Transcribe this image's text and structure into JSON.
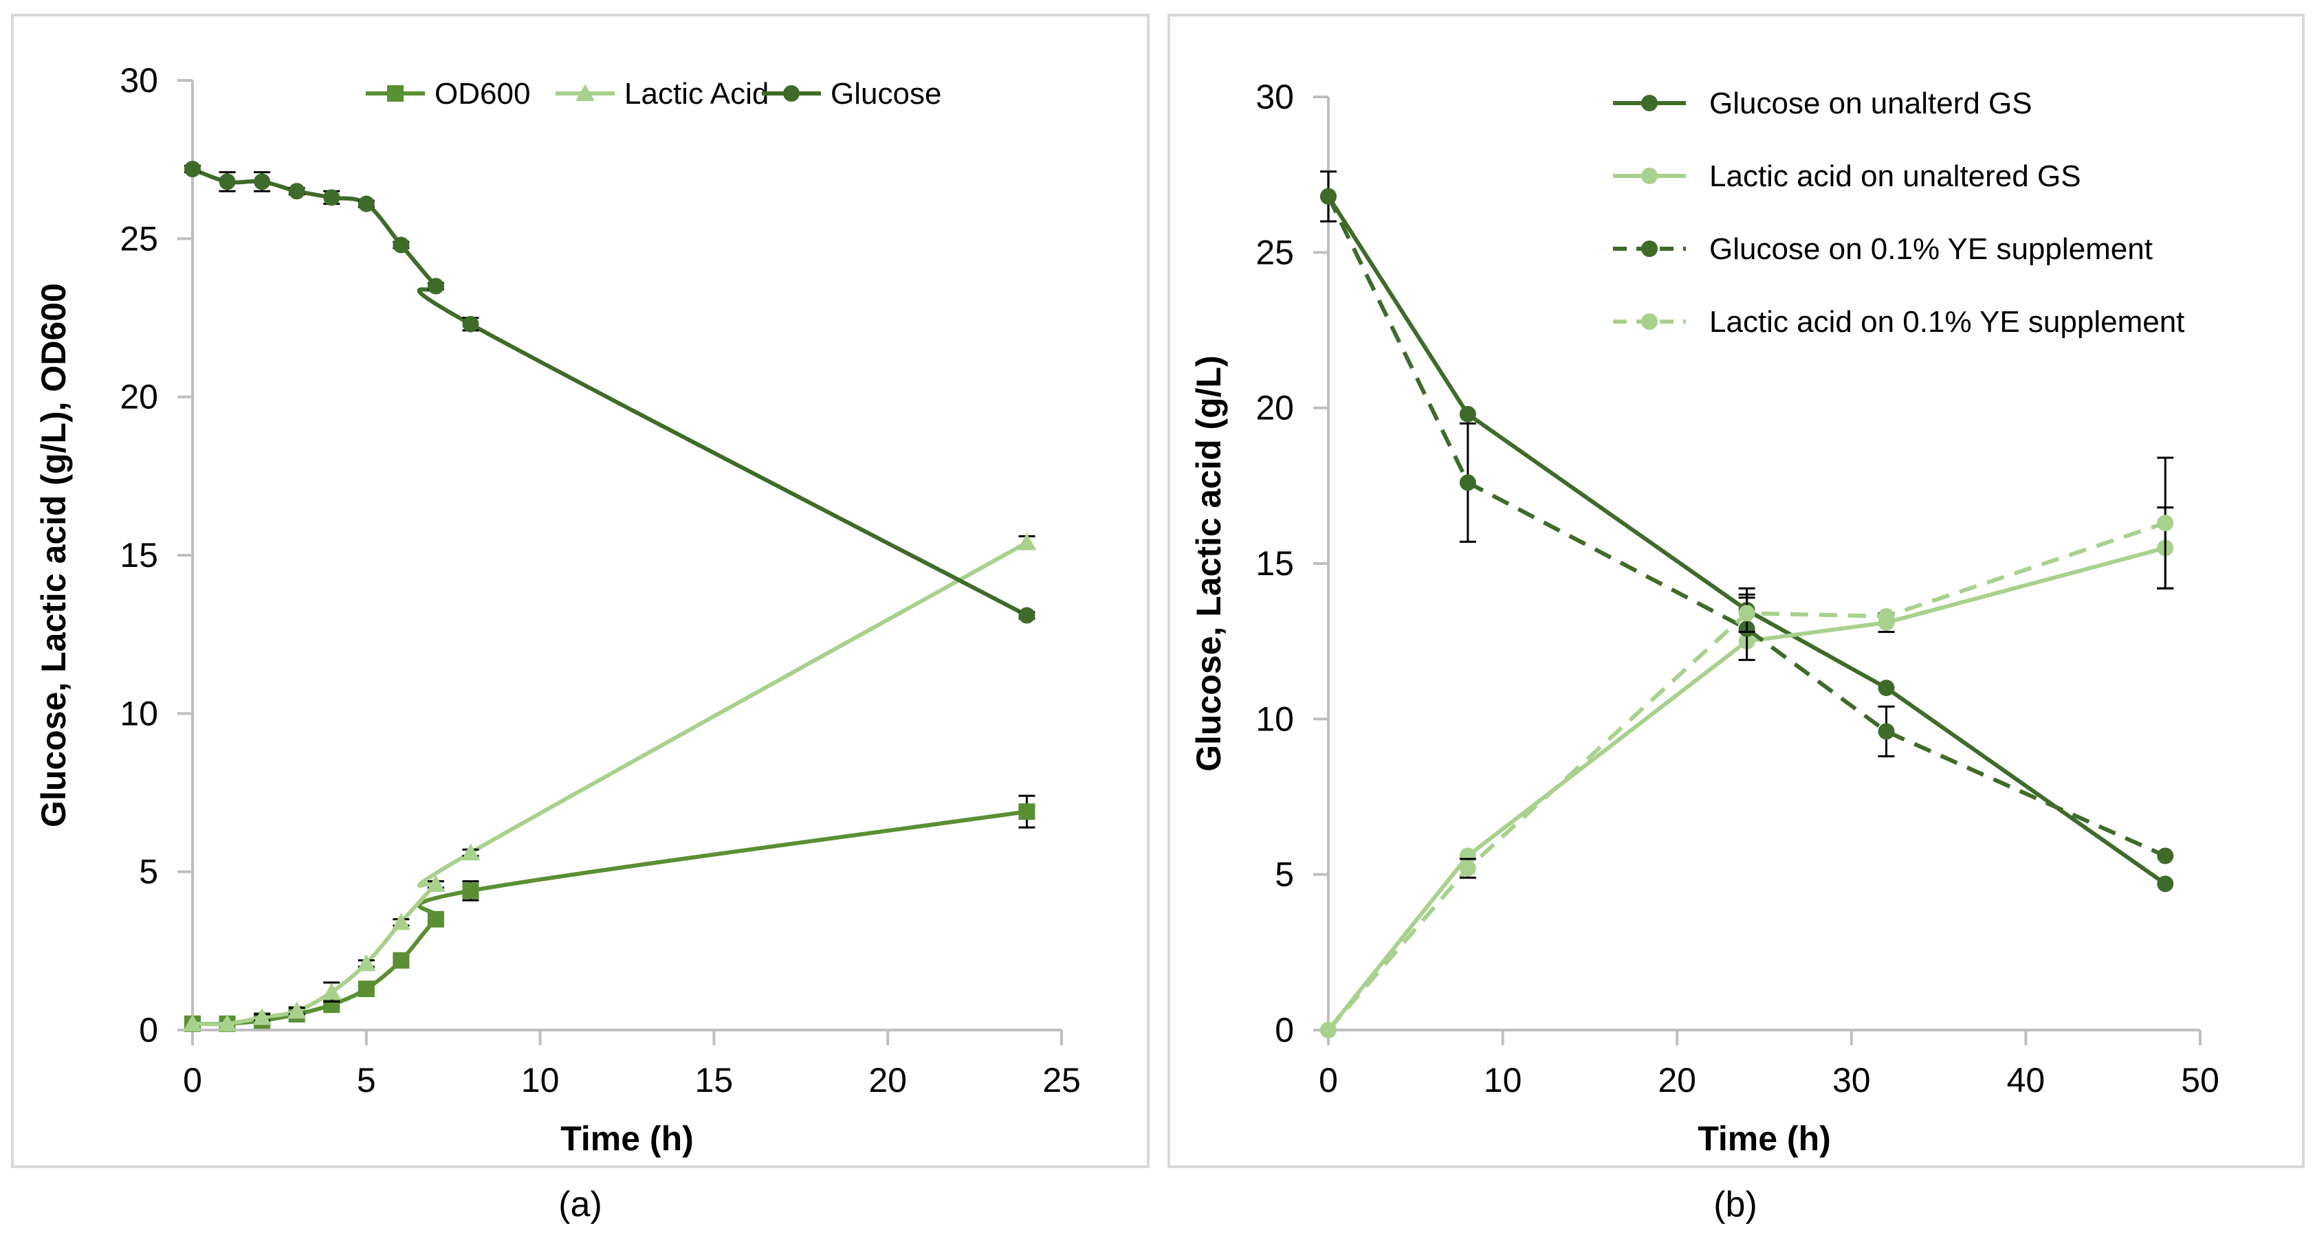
{
  "colors": {
    "dark_green": "#3f6b2a",
    "medium_green": "#5a8f34",
    "light_green": "#a9d18e",
    "error_bar": "#000000"
  },
  "chart_data": [
    {
      "id": "a",
      "type": "line",
      "caption": "(a)",
      "xlabel": "Time (h)",
      "ylabel": "Glucose, Lactic acid (g/L), OD600",
      "xlim": [
        0,
        25
      ],
      "ylim": [
        0,
        30
      ],
      "xticks": [
        0,
        5,
        10,
        15,
        20,
        25
      ],
      "yticks": [
        0,
        5,
        10,
        15,
        20,
        25,
        30
      ],
      "grid": false,
      "legend_position": "top",
      "series": [
        {
          "name": "OD600",
          "color": "medium_green",
          "marker": "square",
          "dashed": false,
          "x": [
            0,
            1,
            2,
            3,
            4,
            5,
            6,
            7,
            8,
            24
          ],
          "y": [
            0.2,
            0.2,
            0.3,
            0.5,
            0.8,
            1.3,
            2.2,
            3.5,
            4.4,
            6.9
          ],
          "err": [
            0,
            0,
            0,
            0.1,
            0.1,
            0.1,
            0.1,
            0.1,
            0.3,
            0.5
          ]
        },
        {
          "name": "Lactic Acid",
          "color": "light_green",
          "marker": "triangle",
          "dashed": false,
          "x": [
            0,
            1,
            2,
            3,
            4,
            5,
            6,
            7,
            8,
            24
          ],
          "y": [
            0.2,
            0.2,
            0.4,
            0.6,
            1.2,
            2.1,
            3.4,
            4.6,
            5.6,
            15.4
          ],
          "err": [
            0,
            0,
            0.1,
            0.1,
            0.3,
            0.1,
            0.1,
            0.1,
            0.1,
            0.2
          ]
        },
        {
          "name": "Glucose",
          "color": "dark_green",
          "marker": "circle",
          "dashed": false,
          "x": [
            0,
            1,
            2,
            3,
            4,
            5,
            6,
            7,
            8,
            24
          ],
          "y": [
            27.2,
            26.8,
            26.8,
            26.5,
            26.3,
            26.1,
            24.8,
            23.5,
            22.3,
            13.1
          ],
          "err": [
            0.1,
            0.3,
            0.3,
            0.1,
            0.2,
            0.1,
            0.1,
            0.1,
            0.2,
            0.1
          ]
        }
      ]
    },
    {
      "id": "b",
      "type": "line",
      "caption": "(b)",
      "xlabel": "Time (h)",
      "ylabel": "Glucose, Lactic acid (g/L)",
      "xlim": [
        0,
        50
      ],
      "ylim": [
        0,
        30
      ],
      "xticks": [
        0,
        10,
        20,
        30,
        40,
        50
      ],
      "yticks": [
        0,
        5,
        10,
        15,
        20,
        25,
        30
      ],
      "grid": false,
      "legend_position": "top-right",
      "series": [
        {
          "name": "Glucose on unalterd GS",
          "color": "dark_green",
          "marker": "circle",
          "dashed": false,
          "x": [
            0,
            8,
            24,
            32,
            48
          ],
          "y": [
            26.8,
            19.8,
            13.5,
            11.0,
            4.7
          ],
          "err": [
            0.8,
            0,
            0.7,
            0,
            0
          ]
        },
        {
          "name": "Lactic acid on unaltered GS",
          "color": "light_green",
          "marker": "circle",
          "dashed": false,
          "x": [
            0,
            8,
            24,
            32,
            48
          ],
          "y": [
            0,
            5.6,
            12.5,
            13.1,
            15.5
          ],
          "err": [
            0,
            0,
            0,
            0.3,
            1.3
          ]
        },
        {
          "name": "Glucose on 0.1% YE supplement",
          "color": "dark_green",
          "marker": "circle",
          "dashed": true,
          "x": [
            0,
            8,
            24,
            32,
            48
          ],
          "y": [
            26.8,
            17.6,
            12.9,
            9.6,
            5.6
          ],
          "err": [
            0,
            1.9,
            1.0,
            0.8,
            0
          ]
        },
        {
          "name": "Lactic acid on 0.1% YE supplement",
          "color": "light_green",
          "marker": "circle",
          "dashed": true,
          "x": [
            0,
            8,
            24,
            32,
            48
          ],
          "y": [
            0,
            5.2,
            13.4,
            13.3,
            16.3
          ],
          "err": [
            0,
            0.3,
            0.6,
            0,
            2.1
          ]
        }
      ]
    }
  ]
}
